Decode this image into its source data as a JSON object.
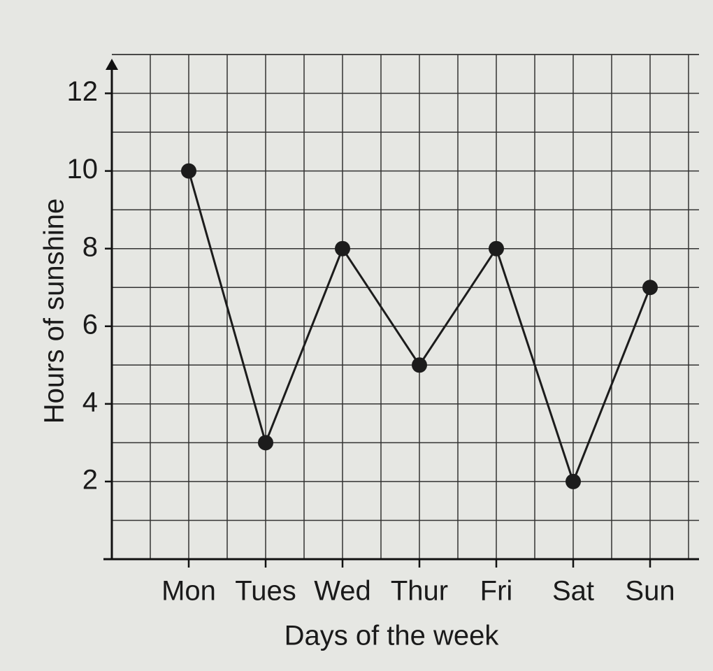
{
  "chart_data": {
    "type": "line",
    "x_label": "Days of the week",
    "y_label": "Hours of sunshine",
    "categories": [
      "Mon",
      "Tues",
      "Wed",
      "Thur",
      "Fri",
      "Sat",
      "Sun"
    ],
    "values": [
      10,
      3,
      8,
      5,
      8,
      2,
      7
    ],
    "color": "#1c1c1c",
    "ylim": [
      0,
      13
    ],
    "yticks": [
      2,
      4,
      6,
      8,
      10,
      12
    ],
    "grid": true
  }
}
